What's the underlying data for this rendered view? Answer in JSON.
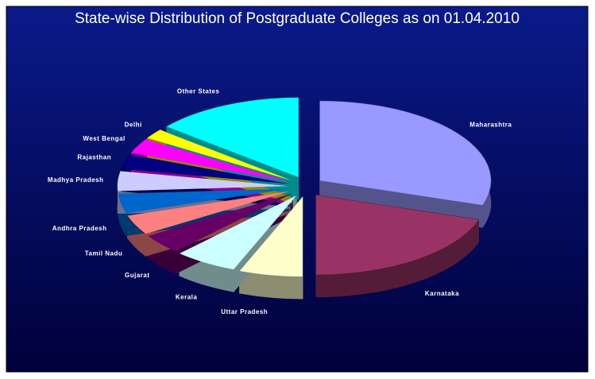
{
  "chart_data": {
    "type": "pie3d",
    "title": "State-wise Distribution of Postgraduate Colleges as on 01.04.2010",
    "categories": [
      "Maharashtra",
      "Karnataka",
      "Uttar Pradesh",
      "Kerala",
      "Gujarat",
      "Tamil Nadu",
      "Andhra Pradesh",
      "Madhya Pradesh",
      "Rajasthan",
      "West Bengal",
      "Delhi",
      "Other States"
    ],
    "values": [
      30,
      20,
      6,
      6,
      4,
      4,
      4,
      4,
      3,
      3,
      2,
      14
    ],
    "colors": [
      "#9999ff",
      "#993366",
      "#ffffcc",
      "#ccffff",
      "#660066",
      "#ff8080",
      "#0066cc",
      "#ccccff",
      "#000080",
      "#ff00ff",
      "#ffff00",
      "#00ffff"
    ]
  }
}
